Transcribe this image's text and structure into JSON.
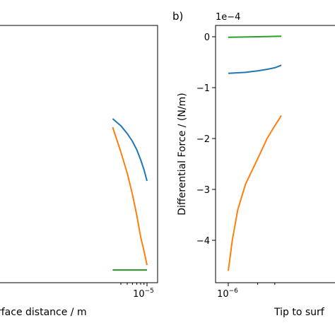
{
  "chart_data": [
    {
      "type": "line",
      "panel_label": "",
      "xlabel": "Tip to surface distance / m",
      "xlabel_visible": "rface distance / m",
      "x_scale": "log",
      "x_tick_label": {
        "base": "10",
        "exp": "−5"
      },
      "series": [
        {
          "color": "#1f77b4",
          "x": [
            3e-06,
            4e-06,
            5e-06,
            6e-06,
            7e-06,
            8e-06,
            9e-06,
            1e-05
          ],
          "y": [
            168,
            178,
            189,
            200,
            212,
            226,
            240,
            256
          ]
        },
        {
          "color": "#ff7f0e",
          "x": [
            3e-06,
            4e-06,
            5e-06,
            6e-06,
            7e-06,
            8e-06,
            9e-06,
            1e-05
          ],
          "y": [
            180,
            215,
            245,
            275,
            305,
            335,
            355,
            375
          ]
        },
        {
          "color": "#2ca02c",
          "x": [
            3e-06,
            1e-05
          ],
          "y": [
            382,
            382
          ]
        }
      ]
    },
    {
      "type": "line",
      "panel_label": "b)",
      "xlabel": "Tip to surf",
      "ylabel": "Differential Force / (N/m)",
      "offset_text": "1e−4",
      "x_scale": "log",
      "x_tick_label": {
        "base": "10",
        "exp": "−6"
      },
      "yticks": [
        "0",
        "−1",
        "−2",
        "−3",
        "−4"
      ],
      "ylim": [
        -4.87,
        0.33
      ],
      "series": [
        {
          "color": "#1f77b4",
          "x": [
            1e-06,
            1.5e-06,
            2e-06,
            2.5e-06,
            3e-06,
            3.5e-06
          ],
          "y": [
            -0.72,
            -0.7,
            -0.67,
            -0.64,
            -0.61,
            -0.56
          ]
        },
        {
          "color": "#ff7f0e",
          "x": [
            1e-06,
            1.1e-06,
            1.25e-06,
            1.5e-06,
            2e-06,
            2.5e-06,
            3e-06,
            3.5e-06
          ],
          "y": [
            -4.6,
            -4.0,
            -3.4,
            -2.9,
            -2.4,
            -2.0,
            -1.75,
            -1.55
          ]
        },
        {
          "color": "#2ca02c",
          "x": [
            1e-06,
            2e-06,
            3.5e-06
          ],
          "y": [
            -0.01,
            0.0,
            0.01
          ]
        }
      ]
    }
  ]
}
